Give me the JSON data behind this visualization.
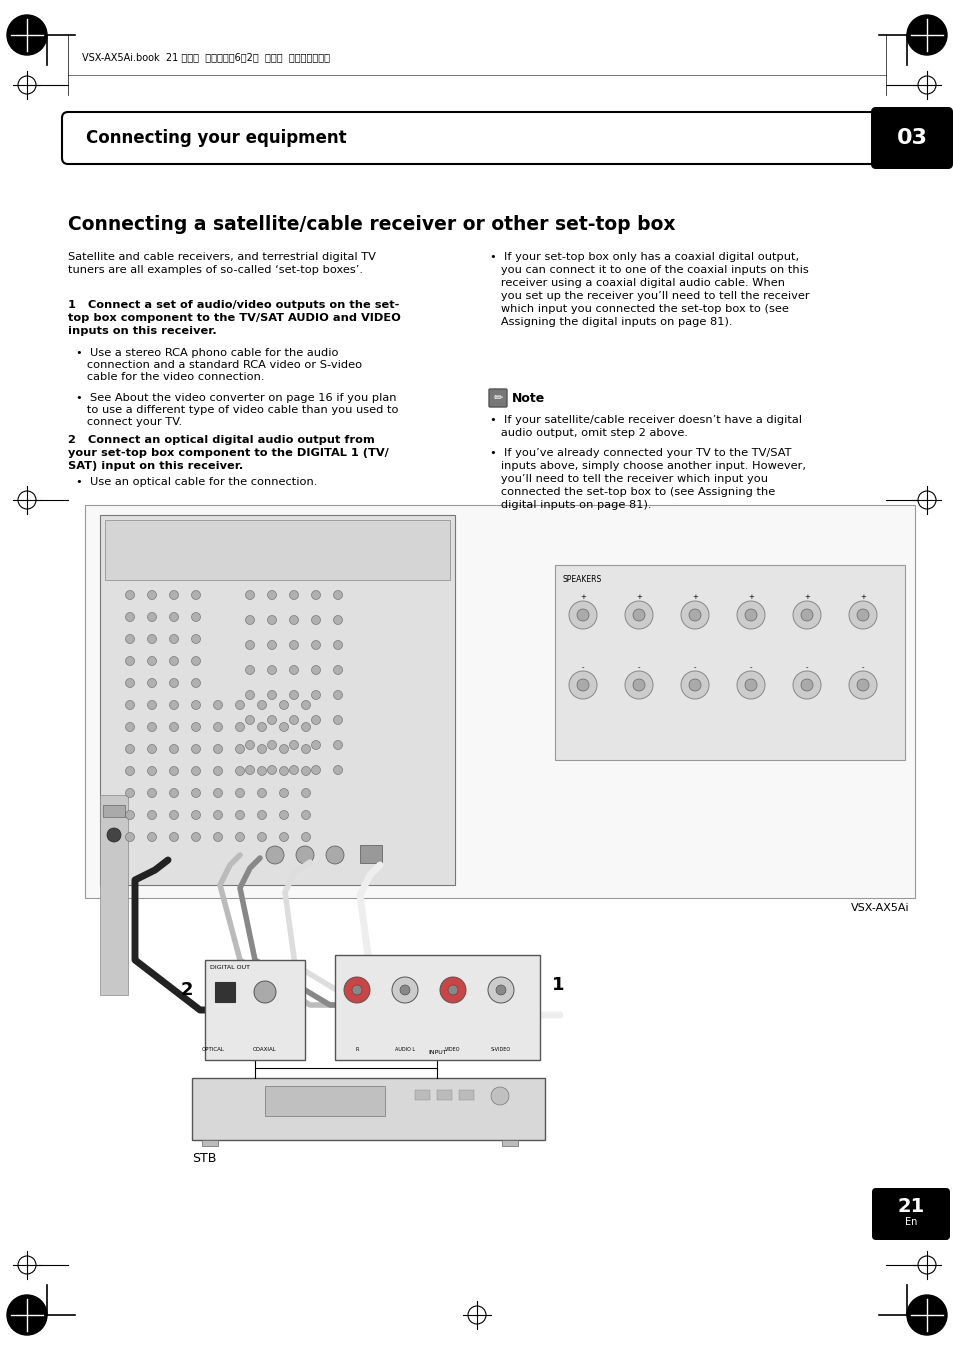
{
  "page_bg": "#ffffff",
  "header_text": "Connecting your equipment",
  "header_badge_text": "03",
  "section_title": "Connecting a satellite/cable receiver or other set-top box",
  "intro_text": "Satellite and cable receivers, and terrestrial digital TV\ntuners are all examples of so-called ‘set-top boxes’.",
  "step1_line1": "1   Connect a set of audio/video outputs on the set-",
  "step1_line2": "top box component to the TV/SAT AUDIO and VIDEO",
  "step1_line3": "inputs on this receiver.",
  "step1_b1_line1": "•  Use a stereo RCA phono cable for the audio",
  "step1_b1_line2": "   connection and a standard RCA video or S-video",
  "step1_b1_line3": "   cable for the video connection.",
  "step1_b2_line1": "•  See About the video converter on page 16 if you plan",
  "step1_b2_line2": "   to use a different type of video cable than you used to",
  "step1_b2_line3": "   connect your TV.",
  "step2_line1": "2   Connect an optical digital audio output from",
  "step2_line2": "your set-top box component to the DIGITAL 1 (TV/",
  "step2_line3": "SAT) input on this receiver.",
  "step2_b1": "•  Use an optical cable for the connection.",
  "rc_bullet": "•  If your set-top box only has a coaxial digital output,\n   you can connect it to one of the coaxial inputs on this\n   receiver using a coaxial digital audio cable. When\n   you set up the receiver you’ll need to tell the receiver\n   which input you connected the set-top box to (see\n   Assigning the digital inputs on page 81).",
  "note_title": "Note",
  "note_b1": "•  If your satellite/cable receiver doesn’t have a digital\n   audio output, omit step 2 above.",
  "note_b2_line1": "•  If you’ve already connected your TV to the TV/SAT",
  "note_b2_line2": "   inputs above, simply choose another input. However,",
  "note_b2_line3": "   you’ll need to tell the receiver which input you",
  "note_b2_line4": "   connected the set-top box to (see Assigning the",
  "note_b2_line5": "   digital inputs on page 81).",
  "label_stb": "STB",
  "label_vsx": "VSX-AX5Ai",
  "label_1": "1",
  "label_2": "2",
  "page_number": "21",
  "page_sub": "En",
  "top_text": "VSX-AX5Ai.book  21 ページ  ２００４年6月2日  水曜日  午後３時２７分"
}
